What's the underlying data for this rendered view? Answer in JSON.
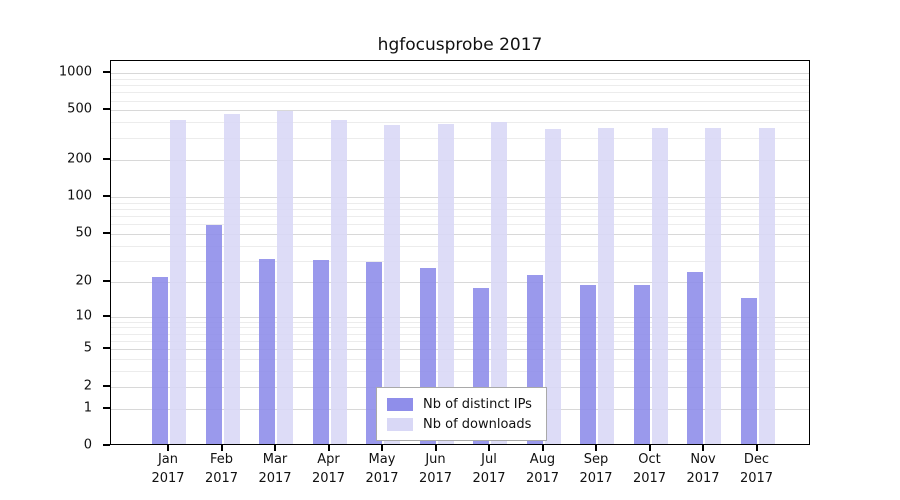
{
  "chart_data": {
    "type": "bar",
    "title": "hgfocusprobe 2017",
    "year": "2017",
    "categories": [
      "Jan",
      "Feb",
      "Mar",
      "Apr",
      "May",
      "Jun",
      "Jul",
      "Aug",
      "Sep",
      "Oct",
      "Nov",
      "Dec"
    ],
    "series": [
      {
        "name": "Nb of distinct IPs",
        "color": "#8f8eea",
        "values": [
          21,
          57,
          30,
          29,
          28,
          25,
          17,
          22,
          18,
          18,
          23,
          14
        ]
      },
      {
        "name": "Nb of downloads",
        "color": "#d9d8f6",
        "values": [
          400,
          450,
          480,
          400,
          370,
          375,
          385,
          340,
          350,
          345,
          350,
          350
        ]
      }
    ],
    "y_axis": {
      "scale": "log1p",
      "ticks": [
        0,
        1,
        2,
        5,
        10,
        20,
        50,
        100,
        200,
        500,
        1000
      ],
      "minor_ticks": [
        3,
        4,
        6,
        7,
        8,
        9,
        30,
        40,
        60,
        70,
        80,
        90,
        300,
        400,
        600,
        700,
        800,
        900
      ],
      "ylim": [
        0,
        1000
      ]
    },
    "xlabel": "",
    "ylabel": "",
    "grid": true,
    "legend_position": "bottom-center"
  },
  "colors": {
    "grid_major": "#d8d8d8",
    "grid_minor": "#ececec",
    "axis": "#000000",
    "background": "#ffffff"
  }
}
